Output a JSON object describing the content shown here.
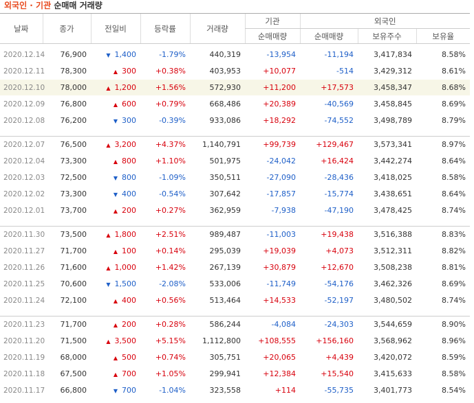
{
  "title": {
    "part1": "외국인 · 기관",
    "part2": "순매매 거래량"
  },
  "headers": {
    "date": "날짜",
    "close": "종가",
    "change": "전일비",
    "rate": "등락률",
    "volume": "거래량",
    "inst": "기관",
    "foreign": "외국인",
    "inst_net": "순매매량",
    "foreign_net": "순매매량",
    "holdings": "보유주수",
    "ratio": "보유율"
  },
  "icons": {
    "up": "▲",
    "down": "▼"
  },
  "colors": {
    "up": "#d8000c",
    "down": "#1e5fc8",
    "highlight": "#f7f6e7",
    "title_orange": "#e8491d"
  },
  "groups": [
    [
      {
        "date": "2020.12.14",
        "close": "76,900",
        "dir": "down",
        "change": "1,400",
        "rate": "-1.79%",
        "volume": "440,319",
        "inst": "-13,954",
        "foreign": "-11,194",
        "holdings": "3,417,834",
        "ratio": "8.58%"
      },
      {
        "date": "2020.12.11",
        "close": "78,300",
        "dir": "up",
        "change": "300",
        "rate": "+0.38%",
        "volume": "403,953",
        "inst": "+10,077",
        "foreign": "-514",
        "holdings": "3,429,312",
        "ratio": "8.61%"
      },
      {
        "date": "2020.12.10",
        "close": "78,000",
        "dir": "up",
        "change": "1,200",
        "rate": "+1.56%",
        "volume": "572,930",
        "inst": "+11,200",
        "foreign": "+17,573",
        "holdings": "3,458,347",
        "ratio": "8.68%",
        "highlight": true
      },
      {
        "date": "2020.12.09",
        "close": "76,800",
        "dir": "up",
        "change": "600",
        "rate": "+0.79%",
        "volume": "668,486",
        "inst": "+20,389",
        "foreign": "-40,569",
        "holdings": "3,458,845",
        "ratio": "8.69%"
      },
      {
        "date": "2020.12.08",
        "close": "76,200",
        "dir": "down",
        "change": "300",
        "rate": "-0.39%",
        "volume": "933,086",
        "inst": "+18,292",
        "foreign": "-74,552",
        "holdings": "3,498,789",
        "ratio": "8.79%"
      }
    ],
    [
      {
        "date": "2020.12.07",
        "close": "76,500",
        "dir": "up",
        "change": "3,200",
        "rate": "+4.37%",
        "volume": "1,140,791",
        "inst": "+99,739",
        "foreign": "+129,467",
        "holdings": "3,573,341",
        "ratio": "8.97%"
      },
      {
        "date": "2020.12.04",
        "close": "73,300",
        "dir": "up",
        "change": "800",
        "rate": "+1.10%",
        "volume": "501,975",
        "inst": "-24,042",
        "foreign": "+16,424",
        "holdings": "3,442,274",
        "ratio": "8.64%"
      },
      {
        "date": "2020.12.03",
        "close": "72,500",
        "dir": "down",
        "change": "800",
        "rate": "-1.09%",
        "volume": "350,511",
        "inst": "-27,090",
        "foreign": "-28,436",
        "holdings": "3,418,025",
        "ratio": "8.58%"
      },
      {
        "date": "2020.12.02",
        "close": "73,300",
        "dir": "down",
        "change": "400",
        "rate": "-0.54%",
        "volume": "307,642",
        "inst": "-17,857",
        "foreign": "-15,774",
        "holdings": "3,438,651",
        "ratio": "8.64%"
      },
      {
        "date": "2020.12.01",
        "close": "73,700",
        "dir": "up",
        "change": "200",
        "rate": "+0.27%",
        "volume": "362,959",
        "inst": "-7,938",
        "foreign": "-47,190",
        "holdings": "3,478,425",
        "ratio": "8.74%"
      }
    ],
    [
      {
        "date": "2020.11.30",
        "close": "73,500",
        "dir": "up",
        "change": "1,800",
        "rate": "+2.51%",
        "volume": "989,487",
        "inst": "-11,003",
        "foreign": "+19,438",
        "holdings": "3,516,388",
        "ratio": "8.83%"
      },
      {
        "date": "2020.11.27",
        "close": "71,700",
        "dir": "up",
        "change": "100",
        "rate": "+0.14%",
        "volume": "295,039",
        "inst": "+19,039",
        "foreign": "+4,073",
        "holdings": "3,512,311",
        "ratio": "8.82%"
      },
      {
        "date": "2020.11.26",
        "close": "71,600",
        "dir": "up",
        "change": "1,000",
        "rate": "+1.42%",
        "volume": "267,139",
        "inst": "+30,879",
        "foreign": "+12,670",
        "holdings": "3,508,238",
        "ratio": "8.81%"
      },
      {
        "date": "2020.11.25",
        "close": "70,600",
        "dir": "down",
        "change": "1,500",
        "rate": "-2.08%",
        "volume": "533,006",
        "inst": "-11,749",
        "foreign": "-54,176",
        "holdings": "3,462,326",
        "ratio": "8.69%"
      },
      {
        "date": "2020.11.24",
        "close": "72,100",
        "dir": "up",
        "change": "400",
        "rate": "+0.56%",
        "volume": "513,464",
        "inst": "+14,533",
        "foreign": "-52,197",
        "holdings": "3,480,502",
        "ratio": "8.74%"
      }
    ],
    [
      {
        "date": "2020.11.23",
        "close": "71,700",
        "dir": "up",
        "change": "200",
        "rate": "+0.28%",
        "volume": "586,244",
        "inst": "-4,084",
        "foreign": "-24,303",
        "holdings": "3,544,659",
        "ratio": "8.90%"
      },
      {
        "date": "2020.11.20",
        "close": "71,500",
        "dir": "up",
        "change": "3,500",
        "rate": "+5.15%",
        "volume": "1,112,800",
        "inst": "+108,555",
        "foreign": "+156,160",
        "holdings": "3,568,962",
        "ratio": "8.96%"
      },
      {
        "date": "2020.11.19",
        "close": "68,000",
        "dir": "up",
        "change": "500",
        "rate": "+0.74%",
        "volume": "305,751",
        "inst": "+20,065",
        "foreign": "+4,439",
        "holdings": "3,420,072",
        "ratio": "8.59%"
      },
      {
        "date": "2020.11.18",
        "close": "67,500",
        "dir": "up",
        "change": "700",
        "rate": "+1.05%",
        "volume": "299,941",
        "inst": "+12,384",
        "foreign": "+15,540",
        "holdings": "3,415,633",
        "ratio": "8.58%"
      },
      {
        "date": "2020.11.17",
        "close": "66,800",
        "dir": "down",
        "change": "700",
        "rate": "-1.04%",
        "volume": "323,558",
        "inst": "+114",
        "foreign": "-55,735",
        "holdings": "3,401,773",
        "ratio": "8.54%"
      }
    ]
  ]
}
